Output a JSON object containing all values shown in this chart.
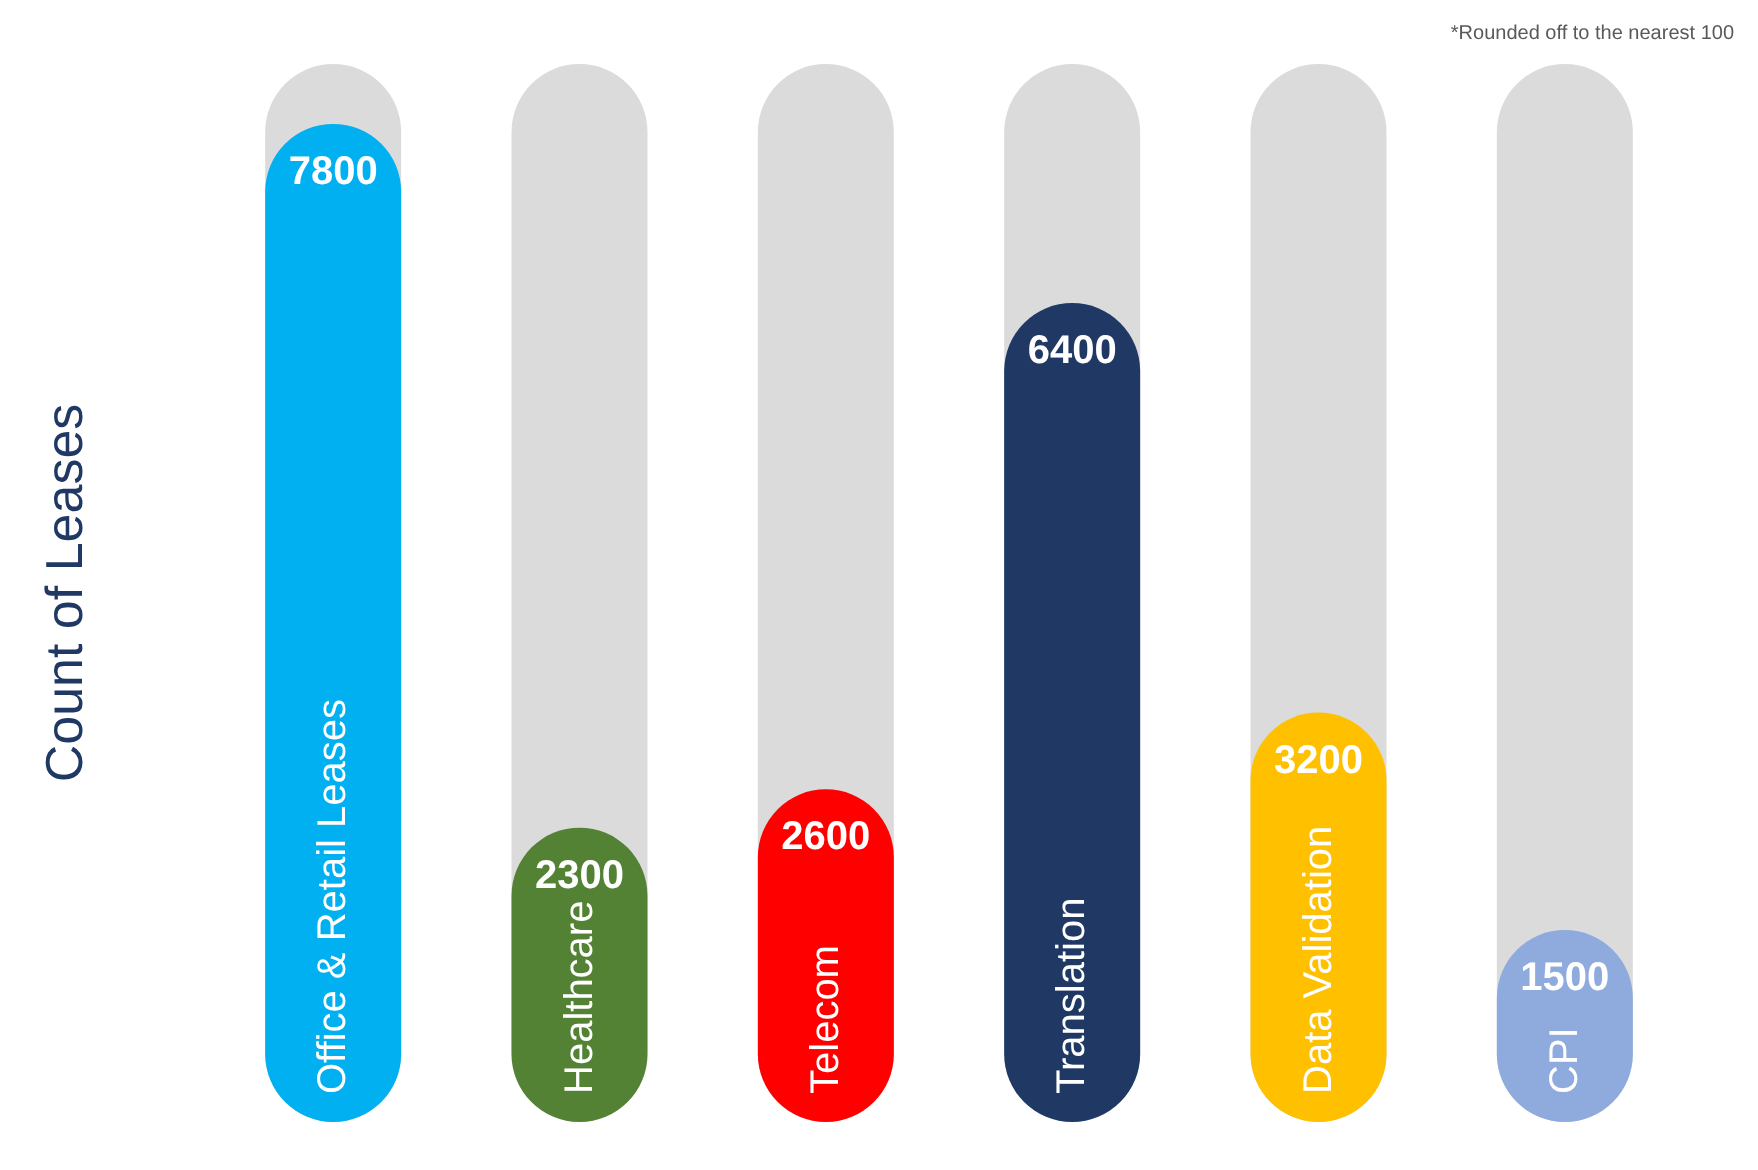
{
  "chart_data": {
    "type": "bar",
    "ylabel": "Count of Leases",
    "annotations": [
      "*Rounded off to the nearest 100"
    ],
    "categories": [
      "Office & Retail Leases",
      "Healthcare",
      "Telecom",
      "Translation",
      "Data Validation",
      "CPI"
    ],
    "values": [
      7800,
      2300,
      2600,
      6400,
      3200,
      1500
    ],
    "colors": [
      "#00b0f0",
      "#548235",
      "#ff0000",
      "#203864",
      "#ffc000",
      "#8faadc"
    ],
    "data_labels": true
  }
}
